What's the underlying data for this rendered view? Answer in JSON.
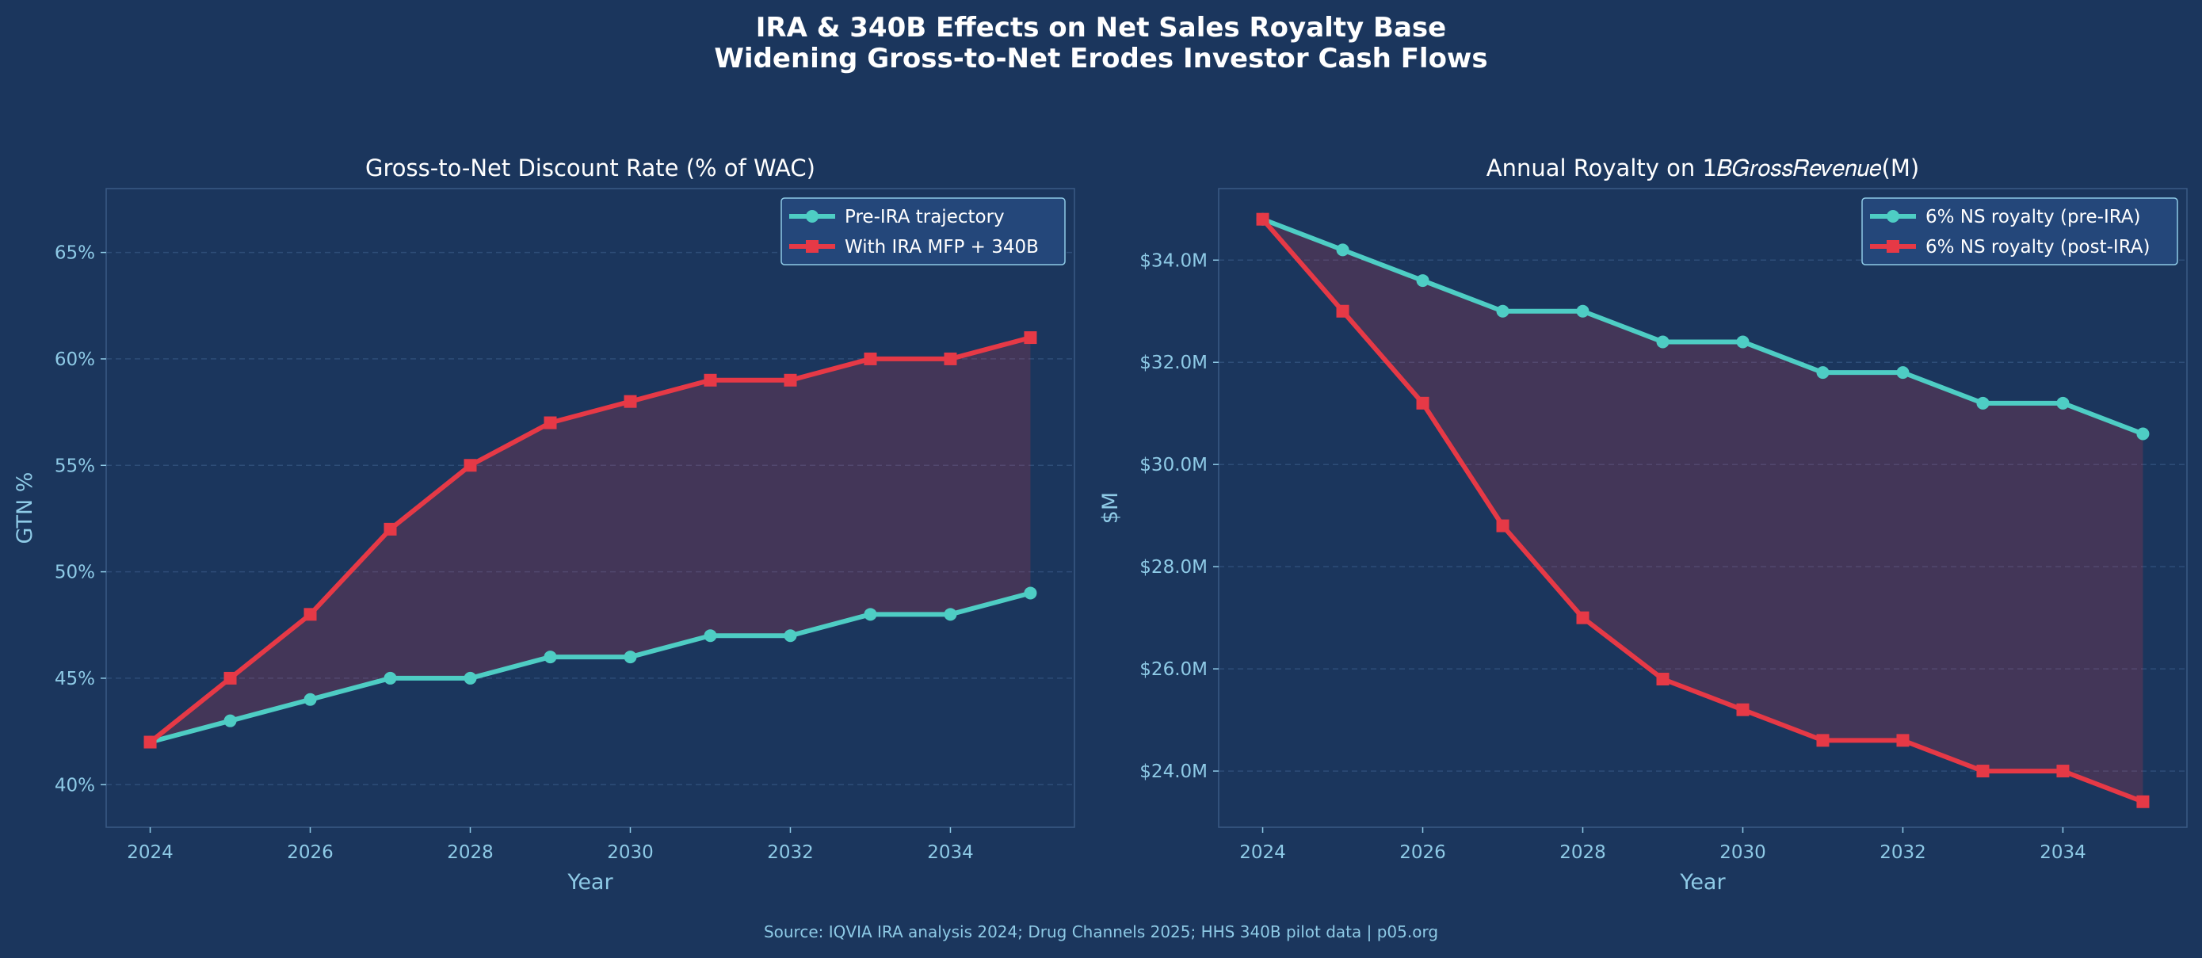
{
  "figure": {
    "title_line1": "IRA & 340B Effects on Net Sales Royalty Base",
    "title_line2": "Widening Gross-to-Net Erodes Investor Cash Flows",
    "source": "Source: IQVIA IRA analysis 2024; Drug Channels 2025; HHS 340B pilot data  |  p05.org"
  },
  "colors": {
    "background": "#1b365d",
    "axis_text": "#8ecae6",
    "title_text": "#ffffff",
    "pre_line": "#4ecdc4",
    "post_line": "#e63946",
    "fill": "#5a2d4d",
    "legend_bg": "#24477a",
    "legend_border": "#8ecae6",
    "spine": "#3a5a85",
    "grid": "#2e4d78"
  },
  "chart_data": [
    {
      "type": "line",
      "title": "Gross-to-Net Discount Rate (% of WAC)",
      "xlabel": "Year",
      "ylabel": "GTN %",
      "x": [
        2024,
        2025,
        2026,
        2027,
        2028,
        2029,
        2030,
        2031,
        2032,
        2033,
        2034,
        2035
      ],
      "xlim": [
        2023.45,
        2035.55
      ],
      "ylim": [
        38,
        68
      ],
      "xticks": [
        2024,
        2026,
        2028,
        2030,
        2032,
        2034
      ],
      "yticks": [
        40,
        45,
        50,
        55,
        60,
        65
      ],
      "ytick_labels": [
        "40%",
        "45%",
        "50%",
        "55%",
        "60%",
        "65%"
      ],
      "legend_position": "top-right",
      "grid": true,
      "series": [
        {
          "name": "Pre-IRA trajectory",
          "marker": "circle",
          "values": [
            42,
            43,
            44,
            45,
            45,
            46,
            46,
            47,
            47,
            48,
            48,
            49
          ]
        },
        {
          "name": "With IRA MFP + 340B",
          "marker": "square",
          "values": [
            42,
            45,
            48,
            52,
            55,
            57,
            58,
            59,
            59,
            60,
            60,
            61
          ]
        }
      ]
    },
    {
      "type": "line",
      "title": "Annual Royalty on 1𝐵𝐺𝑟𝑜𝑠𝑠𝑅𝑒𝑣𝑒𝑛𝑢𝑒(M)",
      "xlabel": "Year",
      "ylabel": "$M",
      "x": [
        2024,
        2025,
        2026,
        2027,
        2028,
        2029,
        2030,
        2031,
        2032,
        2033,
        2034,
        2035
      ],
      "xlim": [
        2023.45,
        2035.55
      ],
      "ylim": [
        22.9,
        35.4
      ],
      "xticks": [
        2024,
        2026,
        2028,
        2030,
        2032,
        2034
      ],
      "yticks": [
        24,
        26,
        28,
        30,
        32,
        34
      ],
      "ytick_labels": [
        "$24.0M",
        "$26.0M",
        "$28.0M",
        "$30.0M",
        "$32.0M",
        "$34.0M"
      ],
      "legend_position": "top-right",
      "grid": true,
      "series": [
        {
          "name": "6% NS royalty (pre-IRA)",
          "marker": "circle",
          "values": [
            34.8,
            34.2,
            33.6,
            33.0,
            33.0,
            32.4,
            32.4,
            31.8,
            31.8,
            31.2,
            31.2,
            30.6
          ]
        },
        {
          "name": "6% NS royalty (post-IRA)",
          "marker": "square",
          "values": [
            34.8,
            33.0,
            31.2,
            28.8,
            27.0,
            25.8,
            25.2,
            24.6,
            24.6,
            24.0,
            24.0,
            23.4
          ]
        }
      ]
    }
  ]
}
